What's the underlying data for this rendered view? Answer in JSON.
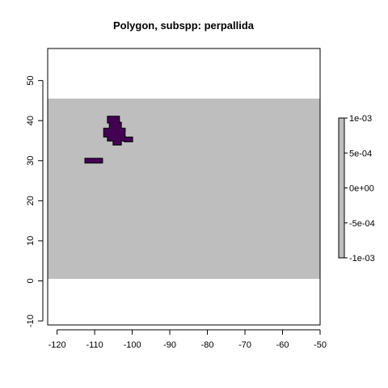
{
  "chart_data": {
    "type": "heatmap",
    "title": "Polygon, subspp: perpallida",
    "xlabel": "",
    "ylabel": "",
    "xlim": [
      -122.5,
      -50
    ],
    "ylim": [
      -11,
      58
    ],
    "x_ticks": [
      -120,
      -110,
      -100,
      -90,
      -80,
      -70,
      -60,
      -50
    ],
    "y_ticks": [
      -10,
      0,
      10,
      20,
      30,
      40,
      50
    ],
    "x_tick_labels": [
      "-120",
      "-110",
      "-100",
      "-90",
      "-80",
      "-70",
      "-60",
      "-50"
    ],
    "y_tick_labels": [
      "-10",
      "0",
      "10",
      "20",
      "30",
      "40",
      "50"
    ],
    "raster_extent": {
      "xmin": -122.5,
      "xmax": -50,
      "ymin": 0.5,
      "ymax": 45.5
    },
    "background_color": "#bebebe",
    "presence_color": "#440154",
    "presence_cells": [
      {
        "x": [
          -106.5,
          -103.5
        ],
        "y": [
          39.5,
          41
        ]
      },
      {
        "x": [
          -106,
          -103
        ],
        "y": [
          38,
          39.5
        ]
      },
      {
        "x": [
          -104,
          -102
        ],
        "y": [
          37.5,
          38
        ]
      },
      {
        "x": [
          -107.5,
          -102
        ],
        "y": [
          36,
          38
        ]
      },
      {
        "x": [
          -106.5,
          -102
        ],
        "y": [
          35,
          36
        ]
      },
      {
        "x": [
          -102,
          -100
        ],
        "y": [
          34.8,
          35.8
        ]
      },
      {
        "x": [
          -105,
          -103
        ],
        "y": [
          34,
          35
        ]
      },
      {
        "x": [
          -112.5,
          -108
        ],
        "y": [
          29.5,
          30.5
        ]
      }
    ],
    "legend": {
      "position": "right",
      "color": "#bebebe",
      "tick_labels": [
        "1e-03",
        "5e-04",
        "0e+00",
        "-5e-04",
        "-1e-03"
      ],
      "values": [
        0.001,
        0.0005,
        0,
        -0.0005,
        -0.001
      ]
    }
  }
}
